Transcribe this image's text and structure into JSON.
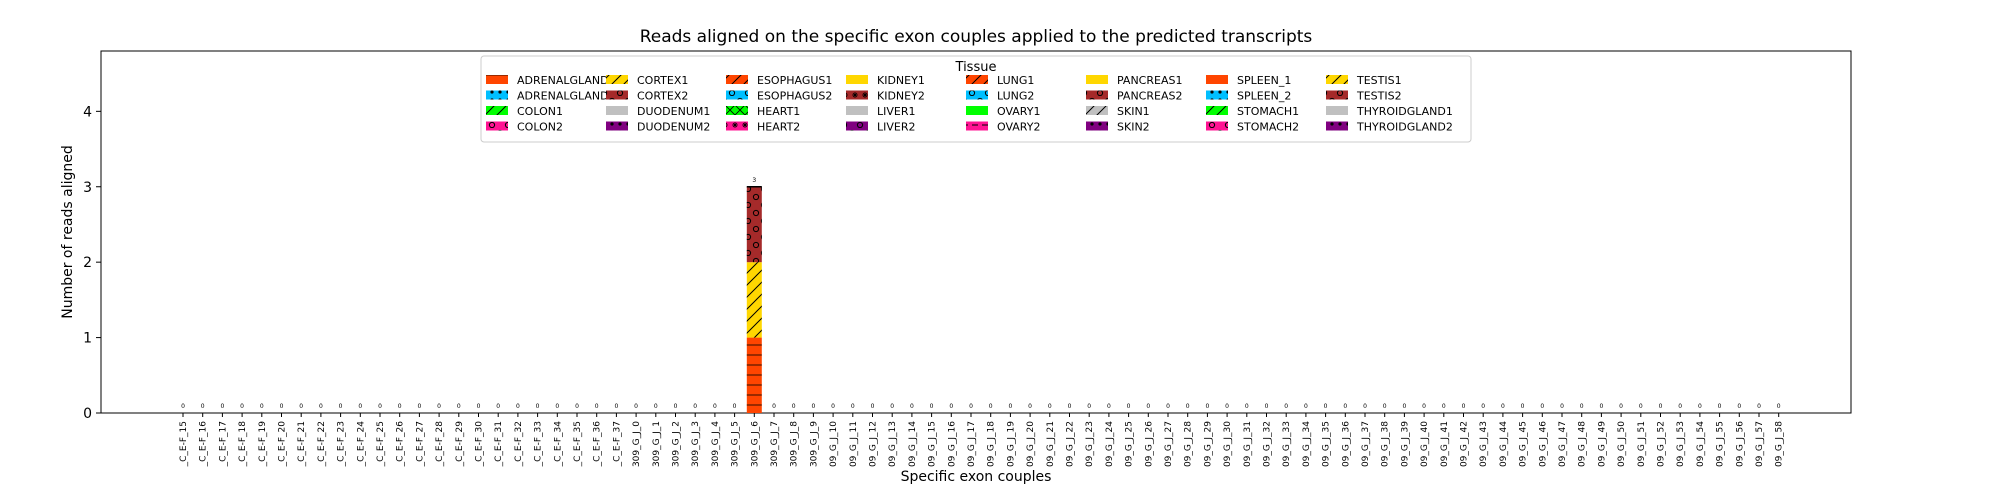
{
  "chart_data": {
    "type": "bar",
    "stacked": true,
    "title": "Reads aligned on the specific exon couples applied to the predicted transcripts",
    "xlabel": "Specific exon couples",
    "ylabel": "Number of reads aligned",
    "ylim": [
      0,
      4.8
    ],
    "yticks": [
      0,
      1,
      2,
      3,
      4
    ],
    "grid": false,
    "legend": {
      "title": "Tissue",
      "placement": "top-center",
      "columns": 8
    },
    "categories": [
      "_C_E-F_15",
      "_C_E-F_16",
      "_C_E-F_17",
      "_C_E-F_18",
      "_C_E-F_19",
      "_C_E-F_20",
      "_C_E-F_21",
      "_C_E-F_22",
      "_C_E-F_23",
      "_C_E-F_24",
      "_C_E-F_25",
      "_C_E-F_26",
      "_C_E-F_27",
      "_C_E-F_28",
      "_C_E-F_29",
      "_C_E-F_30",
      "_C_E-F_31",
      "_C_E-F_32",
      "_C_E-F_33",
      "_C_E-F_34",
      "_C_E-F_35",
      "_C_E-F_36",
      "_C_E-F_37",
      "309_G_J_0",
      "309_G_J_1",
      "309_G_J_2",
      "309_G_J_3",
      "309_G_J_4",
      "309_G_J_5",
      "309_G_J_6",
      "309_G_J_7",
      "309_G_J_8",
      "309_G_J_9",
      "09_G_J_10",
      "09_G_J_11",
      "09_G_J_12",
      "09_G_J_13",
      "09_G_J_14",
      "09_G_J_15",
      "09_G_J_16",
      "09_G_J_17",
      "09_G_J_18",
      "09_G_J_19",
      "09_G_J_20",
      "09_G_J_21",
      "09_G_J_22",
      "09_G_J_23",
      "09_G_J_24",
      "09_G_J_25",
      "09_G_J_26",
      "09_G_J_27",
      "09_G_J_28",
      "09_G_J_29",
      "09_G_J_30",
      "09_G_J_31",
      "09_G_J_32",
      "09_G_J_33",
      "09_G_J_34",
      "09_G_J_35",
      "09_G_J_36",
      "09_G_J_37",
      "09_G_J_38",
      "09_G_J_39",
      "09_G_J_40",
      "09_G_J_41",
      "09_G_J_42",
      "09_G_J_43",
      "09_G_J_44",
      "09_G_J_45",
      "09_G_J_46",
      "09_G_J_47",
      "09_G_J_48",
      "09_G_J_49",
      "09_G_J_50",
      "09_G_J_51",
      "09_G_J_52",
      "09_G_J_53",
      "09_G_J_54",
      "09_G_J_55",
      "09_G_J_56",
      "09_G_J_57",
      "09_G_J_58"
    ],
    "totals": [
      0,
      0,
      0,
      0,
      0,
      0,
      0,
      0,
      0,
      0,
      0,
      0,
      0,
      0,
      0,
      0,
      0,
      0,
      0,
      0,
      0,
      0,
      0,
      0,
      0,
      0,
      0,
      0,
      0,
      3,
      0,
      0,
      0,
      0,
      0,
      0,
      0,
      0,
      0,
      0,
      0,
      0,
      0,
      0,
      0,
      0,
      0,
      0,
      0,
      0,
      0,
      0,
      0,
      0,
      0,
      0,
      0,
      0,
      0,
      0,
      0,
      0,
      0,
      0,
      0,
      0,
      0,
      0,
      0,
      0,
      0,
      0,
      0,
      0,
      0,
      0,
      0,
      0,
      0,
      0,
      0,
      0
    ],
    "stack_segments": [
      {
        "category": "309_G_J_6",
        "series": "ADRENALGLAND1",
        "value": 1
      },
      {
        "category": "309_G_J_6",
        "series": "CORTEX1",
        "value": 1
      },
      {
        "category": "309_G_J_6",
        "series": "CORTEX2",
        "value": 1
      }
    ],
    "series": [
      {
        "name": "ADRENALGLAND1",
        "color": "#ff4500",
        "hatch": "hline"
      },
      {
        "name": "ADRENALGLAND2",
        "color": "#00bfff",
        "hatch": "dots"
      },
      {
        "name": "COLON1",
        "color": "#00ff00",
        "hatch": "slash"
      },
      {
        "name": "COLON2",
        "color": "#ff1493",
        "hatch": "circles"
      },
      {
        "name": "CORTEX1",
        "color": "#ffd700",
        "hatch": "slash"
      },
      {
        "name": "CORTEX2",
        "color": "#a52a2a",
        "hatch": "circles"
      },
      {
        "name": "DUODENUM1",
        "color": "#c0c0c0",
        "hatch": "none"
      },
      {
        "name": "DUODENUM2",
        "color": "#800080",
        "hatch": "dots"
      },
      {
        "name": "ESOPHAGUS1",
        "color": "#ff4500",
        "hatch": "slash"
      },
      {
        "name": "ESOPHAGUS2",
        "color": "#00bfff",
        "hatch": "circles"
      },
      {
        "name": "HEART1",
        "color": "#00ff00",
        "hatch": "cross"
      },
      {
        "name": "HEART2",
        "color": "#ff1493",
        "hatch": "stars"
      },
      {
        "name": "KIDNEY1",
        "color": "#ffd700",
        "hatch": "none"
      },
      {
        "name": "KIDNEY2",
        "color": "#a52a2a",
        "hatch": "stars"
      },
      {
        "name": "LIVER1",
        "color": "#c0c0c0",
        "hatch": "none"
      },
      {
        "name": "LIVER2",
        "color": "#800080",
        "hatch": "circles"
      },
      {
        "name": "LUNG1",
        "color": "#ff4500",
        "hatch": "slash"
      },
      {
        "name": "LUNG2",
        "color": "#00bfff",
        "hatch": "circles"
      },
      {
        "name": "OVARY1",
        "color": "#00ff00",
        "hatch": "none"
      },
      {
        "name": "OVARY2",
        "color": "#ff1493",
        "hatch": "dash"
      },
      {
        "name": "PANCREAS1",
        "color": "#ffd700",
        "hatch": "none"
      },
      {
        "name": "PANCREAS2",
        "color": "#a52a2a",
        "hatch": "circles"
      },
      {
        "name": "SKIN1",
        "color": "#c0c0c0",
        "hatch": "slash"
      },
      {
        "name": "SKIN2",
        "color": "#800080",
        "hatch": "dots"
      },
      {
        "name": "SPLEEN_1",
        "color": "#ff4500",
        "hatch": "none"
      },
      {
        "name": "SPLEEN_2",
        "color": "#00bfff",
        "hatch": "dots"
      },
      {
        "name": "STOMACH1",
        "color": "#00ff00",
        "hatch": "slash"
      },
      {
        "name": "STOMACH2",
        "color": "#ff1493",
        "hatch": "circles"
      },
      {
        "name": "TESTIS1",
        "color": "#ffd700",
        "hatch": "slash"
      },
      {
        "name": "TESTIS2",
        "color": "#a52a2a",
        "hatch": "circles"
      },
      {
        "name": "THYROIDGLAND1",
        "color": "#c0c0c0",
        "hatch": "none"
      },
      {
        "name": "THYROIDGLAND2",
        "color": "#800080",
        "hatch": "dots"
      }
    ]
  }
}
